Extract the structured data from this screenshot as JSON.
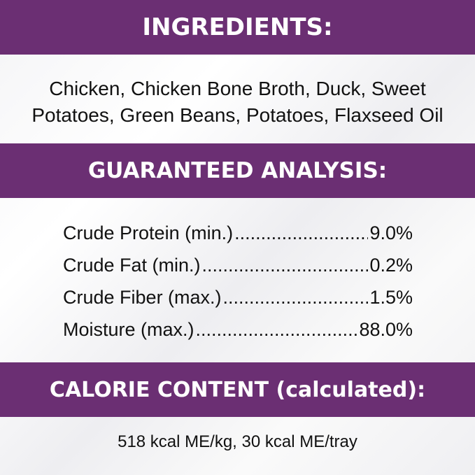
{
  "ingredients": {
    "heading": "INGREDIENTS:",
    "line1": "Chicken, Chicken Bone Broth, Duck, Sweet",
    "line2": "Potatoes, Green Beans, Potatoes, Flaxseed Oil"
  },
  "analysis": {
    "heading": "GUARANTEED ANALYSIS:",
    "rows": [
      {
        "label": "Crude Protein (min.)",
        "value": "9.0%"
      },
      {
        "label": "Crude Fat (min.)",
        "value": "0.2%"
      },
      {
        "label": "Crude Fiber (max.)",
        "value": "1.5%"
      },
      {
        "label": "Moisture (max.)",
        "value": "88.0%"
      }
    ]
  },
  "calorie": {
    "heading": "CALORIE CONTENT (calculated):",
    "text": "518 kcal ME/kg, 30 kcal ME/tray"
  },
  "colors": {
    "band": "#6b2f73"
  }
}
